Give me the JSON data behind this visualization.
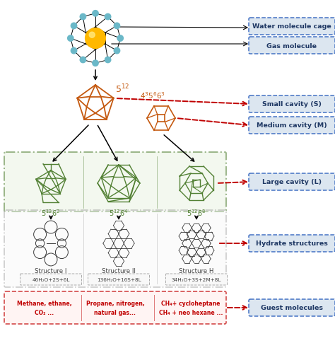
{
  "bg_color": "#ffffff",
  "label_box_color": "#dce6f0",
  "label_box_edge": "#4472c4",
  "label_text_color": "#1f3864",
  "red_arrow_color": "#c00000",
  "black_arrow_color": "#000000",
  "orange_color": "#c55a11",
  "green_color": "#538135",
  "green_box_bg": "#eaf4e3",
  "green_box_edge": "#538135",
  "gray_box_bg": "#f5f5f5",
  "gray_box_edge": "#808080",
  "red_box_bg": "#fff0ee",
  "red_box_edge": "#c00000",
  "red_text_color": "#c00000",
  "labels": {
    "water_cage": "Water molecule cage",
    "gas_molecule": "Gas molecule",
    "small_cavity": "Small cavity (S)",
    "medium_cavity": "Medium cavity (M)",
    "large_cavity": "Large cavity (L)",
    "hydrate_structures": "Hydrate structures",
    "guest_molecules": "Guest molecules"
  },
  "structure_labels": [
    "Structure I",
    "Structure II",
    "Structure H"
  ],
  "formula_labels": [
    "46H₂O+2S+6L",
    "136H₂O+16S+8L",
    "34H₂O+3S+2M+8L"
  ],
  "guest_texts": [
    "Methane, ethane,\nCO₂ ...",
    "Propane, nitrogen,\nnatural gas...",
    "CH₄+ cycloheptane\nCH₄ + neo hexane ..."
  ]
}
